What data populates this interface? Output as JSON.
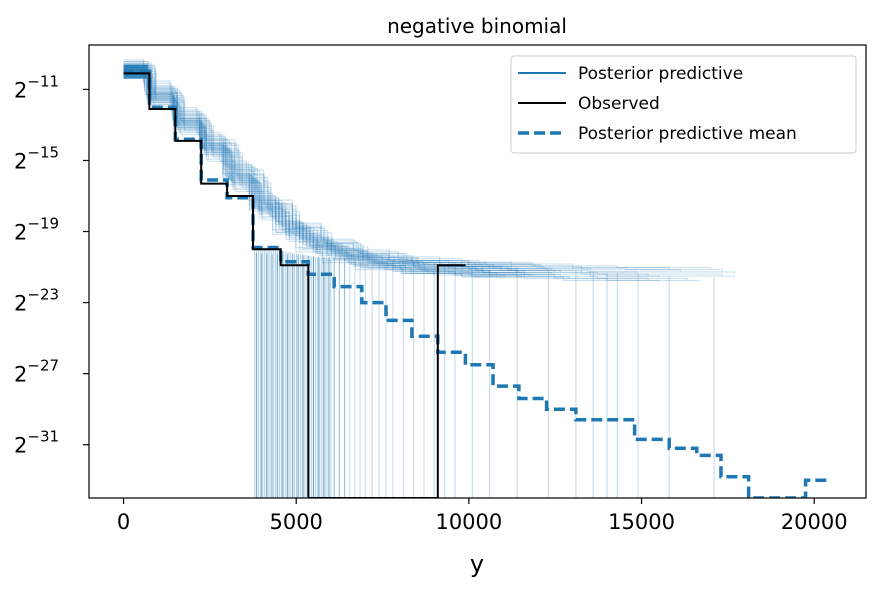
{
  "chart_data": {
    "type": "line",
    "title": "negative binomial",
    "xlabel": "y",
    "ylabel": "",
    "x_ticks": [
      0,
      5000,
      10000,
      15000,
      20000
    ],
    "x_tick_labels": [
      "0",
      "5000",
      "10000",
      "15000",
      "20000"
    ],
    "y_scale": "log2",
    "y_tick_exponents": [
      -11,
      -15,
      -19,
      -23,
      -27,
      -31
    ],
    "y_tick_base": "2",
    "y_tick_exponent_labels": [
      "−11",
      "−15",
      "−19",
      "−23",
      "−27",
      "−31"
    ],
    "xlim": [
      -1000,
      21500
    ],
    "ylim_log2": [
      -34,
      -8.5
    ],
    "grid": false,
    "legend_position": "top-right",
    "series": [
      {
        "name": "Posterior predictive",
        "style": "thin-lines-many-draws",
        "color": "#1f77b4",
        "sample_draws": [
          {
            "x": [
              0,
              700,
              1500,
              2300,
              3000,
              3800,
              4500,
              5200,
              6000,
              7000,
              8500,
              10500,
              12000
            ],
            "y_log2": [
              -9.8,
              -11.2,
              -12.6,
              -14.0,
              -15.6,
              -17.4,
              -18.8,
              -19.8,
              -20.4,
              -20.8,
              -21.0,
              -21.2,
              -21.3
            ]
          },
          {
            "x": [
              0,
              800,
              1600,
              2400,
              3200,
              4000,
              4800,
              5600,
              6600,
              7800,
              9600,
              11600,
              14000,
              15500
            ],
            "y_log2": [
              -9.9,
              -11.4,
              -13.0,
              -14.4,
              -16.2,
              -17.8,
              -19.0,
              -19.9,
              -20.5,
              -20.9,
              -21.1,
              -21.3,
              -21.4,
              -21.5
            ]
          },
          {
            "x": [
              0,
              600,
              1400,
              2200,
              2900,
              3700,
              4400,
              5100,
              5900,
              6800,
              8000,
              9800,
              12400
            ],
            "y_log2": [
              -9.7,
              -10.9,
              -12.4,
              -13.8,
              -15.4,
              -17.1,
              -18.5,
              -19.5,
              -20.2,
              -20.7,
              -21.0,
              -21.2,
              -21.3
            ]
          },
          {
            "x": [
              0,
              900,
              1700,
              2500,
              3300,
              4100,
              4900,
              5800,
              6800,
              8200,
              10000,
              13000,
              17000
            ],
            "y_log2": [
              -10.0,
              -11.6,
              -13.2,
              -14.7,
              -16.4,
              -18.0,
              -19.2,
              -20.0,
              -20.6,
              -21.0,
              -21.2,
              -21.4,
              -21.5
            ]
          },
          {
            "x": [
              0,
              700,
              1500,
              2300,
              3100,
              3900,
              4700,
              5500,
              6400,
              7400,
              8800,
              10800
            ],
            "y_log2": [
              -9.8,
              -11.3,
              -12.8,
              -14.2,
              -15.9,
              -17.6,
              -18.9,
              -19.8,
              -20.4,
              -20.8,
              -21.1,
              -21.3
            ]
          },
          {
            "x": [
              0,
              800,
              1500,
              2300,
              3000,
              3800,
              4600,
              5400,
              6200,
              7200,
              8400,
              10200,
              11400
            ],
            "y_log2": [
              -9.9,
              -11.5,
              -12.9,
              -14.3,
              -16.0,
              -17.5,
              -18.7,
              -19.6,
              -20.2,
              -20.7,
              -21.0,
              -21.2,
              -21.3
            ]
          }
        ],
        "drop_x": [
          3850,
          4000,
          4150,
          4300,
          4450,
          4600,
          4750,
          4900,
          5050,
          5200,
          5350,
          5500,
          5650,
          5800,
          5950,
          6100,
          6250,
          6400,
          6550,
          6700,
          6850,
          7000,
          7200,
          7400,
          7600,
          7800,
          8100,
          8400,
          8700,
          9000,
          9300,
          9600,
          10100,
          10600,
          11400,
          12300,
          13100,
          13600,
          14000,
          14300,
          14900,
          15800,
          17100
        ]
      },
      {
        "name": "Observed",
        "style": "step",
        "color": "#000000",
        "x": [
          0,
          750,
          750,
          1500,
          1500,
          2250,
          2250,
          3000,
          3000,
          3750,
          3750,
          4550,
          4550,
          5350,
          5350,
          9100,
          9100,
          9900
        ],
        "y_log2": [
          -10.1,
          -10.1,
          -12.1,
          -12.1,
          -13.9,
          -13.9,
          -16.3,
          -16.3,
          -17.0,
          -17.0,
          -20.0,
          -20.0,
          -20.9,
          -20.9,
          -34,
          -34,
          -20.9,
          -20.9
        ]
      },
      {
        "name": "Posterior predictive mean",
        "style": "dashed-step",
        "color": "#1f77b4",
        "x": [
          0,
          750,
          750,
          1500,
          1500,
          2250,
          2250,
          3000,
          3000,
          3750,
          3750,
          4550,
          4550,
          5350,
          5350,
          6100,
          6100,
          6900,
          6900,
          7600,
          7600,
          8350,
          8350,
          9100,
          9100,
          9900,
          9900,
          10700,
          10700,
          11450,
          11450,
          12250,
          12250,
          13100,
          13100,
          14800,
          14800,
          15800,
          15800,
          16600,
          16600,
          17300,
          17300,
          18100,
          18100,
          19750,
          19750,
          20400
        ],
        "y_log2": [
          -10.0,
          -10.0,
          -12.0,
          -12.0,
          -13.8,
          -13.8,
          -16.1,
          -16.1,
          -17.1,
          -17.1,
          -19.9,
          -19.9,
          -20.7,
          -20.7,
          -21.4,
          -21.4,
          -22.1,
          -22.1,
          -23.0,
          -23.0,
          -24.0,
          -24.0,
          -24.9,
          -24.9,
          -25.8,
          -25.8,
          -26.5,
          -26.5,
          -27.7,
          -27.7,
          -28.4,
          -28.4,
          -29.0,
          -29.0,
          -29.6,
          -29.6,
          -30.7,
          -30.7,
          -31.2,
          -31.2,
          -31.6,
          -31.6,
          -32.8,
          -32.8,
          -34,
          -34,
          -33.0,
          -33.0
        ]
      }
    ]
  }
}
